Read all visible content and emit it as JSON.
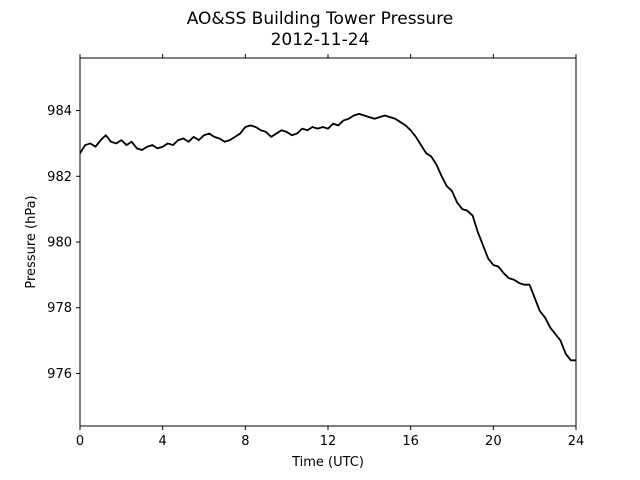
{
  "chart_data": {
    "type": "line",
    "title": "AO&SS Building Tower Pressure",
    "subtitle": "2012-11-24",
    "xlabel": "Time (UTC)",
    "ylabel": "Pressure (hPa)",
    "xlim": [
      0,
      24
    ],
    "ylim": [
      974.4,
      985.6
    ],
    "xticks": [
      0,
      4,
      8,
      12,
      16,
      20,
      24
    ],
    "yticks": [
      976,
      978,
      980,
      982,
      984
    ],
    "grid": false,
    "series": [
      {
        "color": "#000000",
        "x": [
          0,
          0.25,
          0.5,
          0.75,
          1.0,
          1.25,
          1.5,
          1.75,
          2.0,
          2.25,
          2.5,
          2.75,
          3.0,
          3.25,
          3.5,
          3.75,
          4.0,
          4.25,
          4.5,
          4.75,
          5.0,
          5.25,
          5.5,
          5.75,
          6.0,
          6.25,
          6.5,
          6.75,
          7.0,
          7.25,
          7.5,
          7.75,
          8.0,
          8.25,
          8.5,
          8.75,
          9.0,
          9.25,
          9.5,
          9.75,
          10.0,
          10.25,
          10.5,
          10.75,
          11.0,
          11.25,
          11.5,
          11.75,
          12.0,
          12.25,
          12.5,
          12.75,
          13.0,
          13.25,
          13.5,
          13.75,
          14.0,
          14.25,
          14.5,
          14.75,
          15.0,
          15.25,
          15.5,
          15.75,
          16.0,
          16.25,
          16.5,
          16.75,
          17.0,
          17.25,
          17.5,
          17.75,
          18.0,
          18.25,
          18.5,
          18.75,
          19.0,
          19.25,
          19.5,
          19.75,
          20.0,
          20.25,
          20.5,
          20.75,
          21.0,
          21.25,
          21.5,
          21.75,
          22.0,
          22.25,
          22.5,
          22.75,
          23.0,
          23.25,
          23.5,
          23.75,
          24.0
        ],
        "y": [
          982.7,
          982.95,
          983.0,
          982.9,
          983.1,
          983.25,
          983.05,
          983.0,
          983.1,
          982.95,
          983.05,
          982.85,
          982.8,
          982.9,
          982.95,
          982.85,
          982.9,
          983.0,
          982.95,
          983.1,
          983.15,
          983.05,
          983.2,
          983.1,
          983.25,
          983.3,
          983.2,
          983.15,
          983.05,
          983.1,
          983.2,
          983.3,
          983.5,
          983.55,
          983.5,
          983.4,
          983.35,
          983.2,
          983.3,
          983.4,
          983.35,
          983.25,
          983.3,
          983.45,
          983.4,
          983.5,
          983.45,
          983.5,
          983.45,
          983.6,
          983.55,
          983.7,
          983.75,
          983.85,
          983.9,
          983.85,
          983.8,
          983.75,
          983.8,
          983.85,
          983.8,
          983.75,
          983.65,
          983.55,
          983.4,
          983.2,
          982.95,
          982.7,
          982.6,
          982.35,
          982.0,
          981.7,
          981.55,
          981.2,
          981.0,
          980.95,
          980.8,
          980.3,
          979.9,
          979.5,
          979.3,
          979.25,
          979.05,
          978.9,
          978.85,
          978.75,
          978.7,
          978.7,
          978.3,
          977.9,
          977.7,
          977.4,
          977.2,
          977.0,
          976.6,
          976.4,
          976.4
        ]
      }
    ]
  }
}
